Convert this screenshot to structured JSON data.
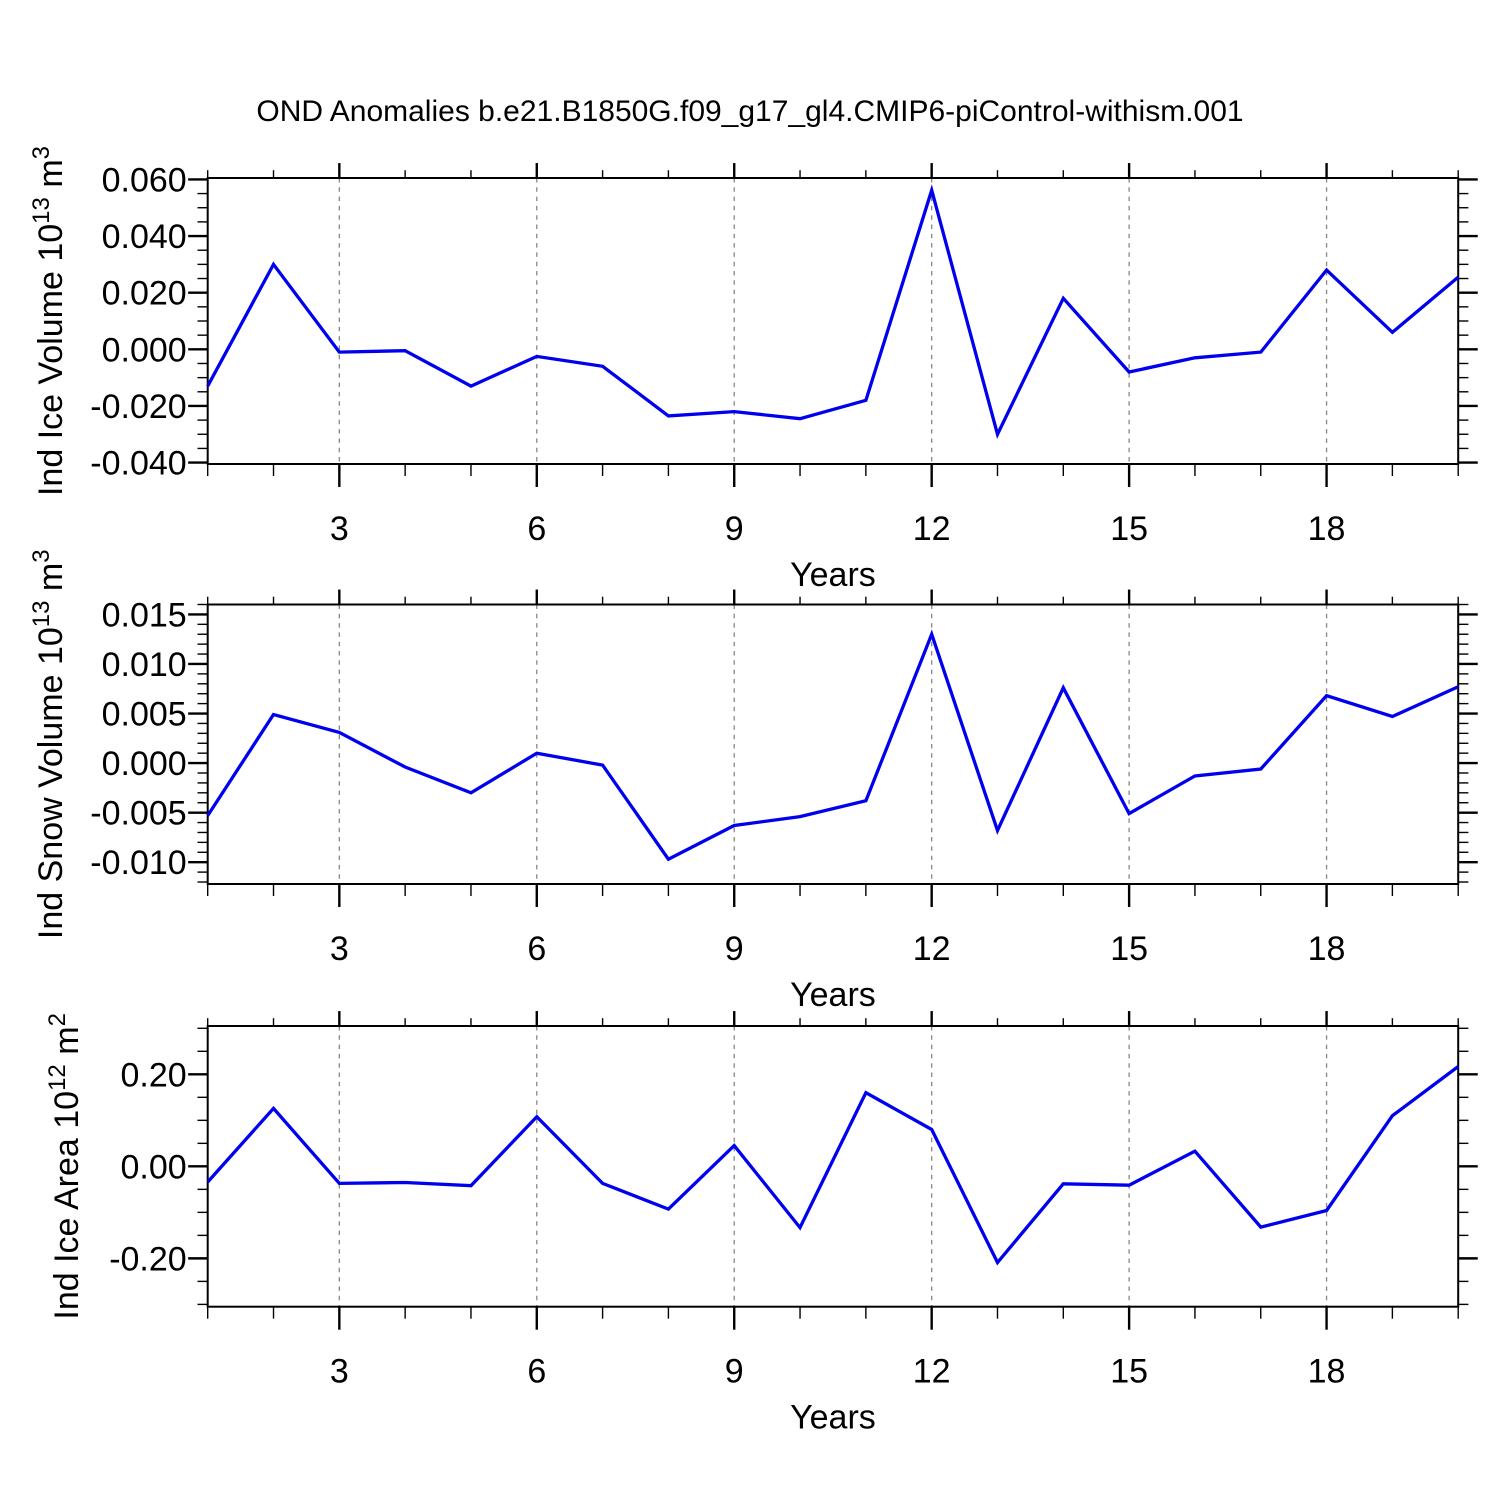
{
  "title": "OND Anomalies b.e21.B1850G.f09_g17_gl4.CMIP6-piControl-withism.001",
  "style": {
    "line_color": "#0000ee",
    "grid_color": "#878787",
    "axis_color": "#000000",
    "background": "#ffffff"
  },
  "x_axis": {
    "label": "Years",
    "range": [
      1,
      20
    ],
    "major_ticks": [
      3,
      6,
      9,
      12,
      15,
      18
    ],
    "major_tick_labels": [
      "3",
      "6",
      "9",
      "12",
      "15",
      "18"
    ],
    "minor_step": 1,
    "gridlines": "dashed-vertical"
  },
  "chart_data": [
    {
      "type": "line",
      "name": "ind-ice-volume",
      "ylabel": "Ind Ice Volume 10^13 m^3",
      "ylabel_segments": [
        [
          "Ind Ice Volume 10",
          false
        ],
        [
          "13",
          true
        ],
        [
          " m",
          false
        ],
        [
          "3",
          true
        ]
      ],
      "xlabel": "Years",
      "x": [
        1,
        2,
        3,
        4,
        5,
        6,
        7,
        8,
        9,
        10,
        11,
        12,
        13,
        14,
        15,
        16,
        17,
        18,
        19,
        20
      ],
      "y": [
        -0.013,
        0.03,
        -0.001,
        -0.0005,
        -0.013,
        -0.0025,
        -0.006,
        -0.0235,
        -0.022,
        -0.0245,
        -0.018,
        0.0562,
        -0.03,
        0.018,
        -0.008,
        -0.003,
        -0.001,
        0.028,
        0.006,
        0.0255
      ],
      "ylim": [
        -0.0405,
        0.0605
      ],
      "ytick_values": [
        0.06,
        0.04,
        0.02,
        0.0,
        -0.02,
        -0.04
      ],
      "ytick_labels": [
        "0.060",
        "0.040",
        "0.020",
        "0.000",
        "-0.020",
        "-0.040"
      ],
      "yminor_step": 0.005
    },
    {
      "type": "line",
      "name": "ind-snow-volume",
      "ylabel": "Ind Snow Volume 10^13 m^3",
      "ylabel_segments": [
        [
          "Ind Snow Volume 10",
          false
        ],
        [
          "13",
          true
        ],
        [
          " m",
          false
        ],
        [
          "3",
          true
        ]
      ],
      "xlabel": "Years",
      "x": [
        1,
        2,
        3,
        4,
        5,
        6,
        7,
        8,
        9,
        10,
        11,
        12,
        13,
        14,
        15,
        16,
        17,
        18,
        19,
        20
      ],
      "y": [
        -0.0053,
        0.0049,
        0.0031,
        -0.0004,
        -0.003,
        0.001,
        -0.0002,
        -0.0097,
        -0.0063,
        -0.0054,
        -0.0038,
        0.013,
        -0.0068,
        0.0076,
        -0.0051,
        -0.0013,
        -0.0006,
        0.0068,
        0.0047,
        0.0077
      ],
      "ylim": [
        -0.0122,
        0.016
      ],
      "ytick_values": [
        0.015,
        0.01,
        0.005,
        0.0,
        -0.005,
        -0.01
      ],
      "ytick_labels": [
        "0.015",
        "0.010",
        "0.005",
        "0.000",
        "-0.005",
        "-0.010"
      ],
      "yminor_step": 0.001
    },
    {
      "type": "line",
      "name": "ind-ice-area",
      "ylabel": "Ind Ice Area 10^12 m^2",
      "ylabel_segments": [
        [
          "Ind Ice Area 10",
          false
        ],
        [
          "12",
          true
        ],
        [
          " m",
          false
        ],
        [
          "2",
          true
        ]
      ],
      "xlabel": "Years",
      "x": [
        1,
        2,
        3,
        4,
        5,
        6,
        7,
        8,
        9,
        10,
        11,
        12,
        13,
        14,
        15,
        16,
        17,
        18,
        19,
        20
      ],
      "y": [
        -0.034,
        0.126,
        -0.037,
        -0.035,
        -0.042,
        0.108,
        -0.037,
        -0.093,
        0.045,
        -0.133,
        0.16,
        0.08,
        -0.209,
        -0.038,
        -0.041,
        0.033,
        -0.132,
        -0.096,
        0.11,
        0.217
      ],
      "ylim": [
        -0.305,
        0.305
      ],
      "ytick_values": [
        0.2,
        0.0,
        -0.2
      ],
      "ytick_labels": [
        "0.20",
        "0.00",
        "-0.20"
      ],
      "yminor_step": 0.05
    }
  ]
}
